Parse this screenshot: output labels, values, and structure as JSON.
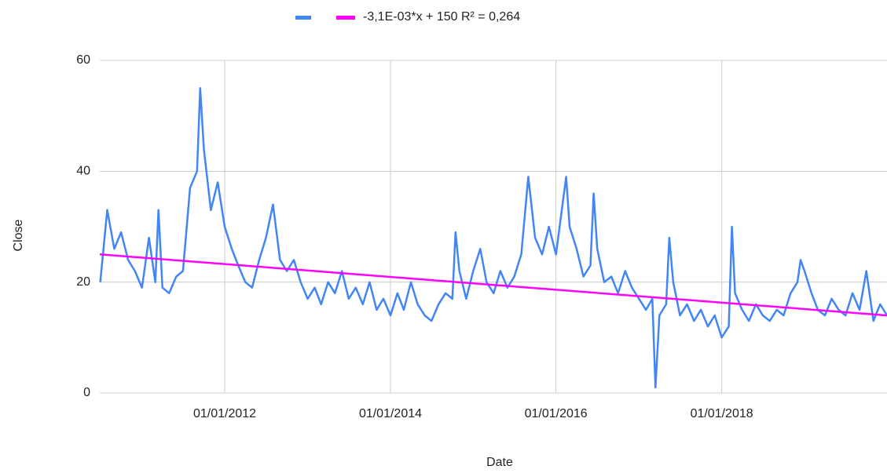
{
  "chart_data": {
    "type": "line",
    "x_label": "Date",
    "y_label": "Close",
    "x": [
      "01/07/2010",
      "01/08/2010",
      "01/09/2010",
      "01/10/2010",
      "01/11/2010",
      "01/12/2010",
      "01/01/2011",
      "01/02/2011",
      "01/03/2011",
      "15/03/2011",
      "01/04/2011",
      "01/05/2011",
      "01/06/2011",
      "01/07/2011",
      "01/08/2011",
      "01/09/2011",
      "15/09/2011",
      "01/10/2011",
      "01/11/2011",
      "01/12/2011",
      "01/01/2012",
      "01/02/2012",
      "01/03/2012",
      "01/04/2012",
      "01/05/2012",
      "01/06/2012",
      "01/07/2012",
      "01/08/2012",
      "01/09/2012",
      "01/10/2012",
      "01/11/2012",
      "01/12/2012",
      "01/01/2013",
      "01/02/2013",
      "01/03/2013",
      "01/04/2013",
      "01/05/2013",
      "01/06/2013",
      "01/07/2013",
      "01/08/2013",
      "01/09/2013",
      "01/10/2013",
      "01/11/2013",
      "01/12/2013",
      "01/01/2014",
      "01/02/2014",
      "01/03/2014",
      "01/04/2014",
      "01/05/2014",
      "01/06/2014",
      "01/07/2014",
      "01/08/2014",
      "01/09/2014",
      "01/10/2014",
      "15/10/2014",
      "01/11/2014",
      "01/12/2014",
      "01/01/2015",
      "01/02/2015",
      "01/03/2015",
      "01/04/2015",
      "01/05/2015",
      "01/06/2015",
      "01/07/2015",
      "01/08/2015",
      "01/09/2015",
      "01/10/2015",
      "01/11/2015",
      "01/12/2015",
      "01/01/2016",
      "15/02/2016",
      "01/03/2016",
      "01/04/2016",
      "01/05/2016",
      "01/06/2016",
      "15/06/2016",
      "01/07/2016",
      "01/08/2016",
      "01/09/2016",
      "01/10/2016",
      "01/11/2016",
      "01/12/2016",
      "01/01/2017",
      "01/02/2017",
      "01/03/2017",
      "15/03/2017",
      "01/04/2017",
      "01/05/2017",
      "15/05/2017",
      "01/06/2017",
      "01/07/2017",
      "01/08/2017",
      "01/09/2017",
      "01/10/2017",
      "01/11/2017",
      "01/12/2017",
      "01/01/2018",
      "01/02/2018",
      "15/02/2018",
      "01/03/2018",
      "01/04/2018",
      "01/05/2018",
      "01/06/2018",
      "01/07/2018",
      "01/08/2018",
      "01/09/2018",
      "01/10/2018",
      "01/11/2018",
      "01/12/2018",
      "15/12/2018",
      "01/01/2019",
      "01/02/2019",
      "01/03/2019",
      "01/04/2019",
      "01/05/2019",
      "01/06/2019",
      "01/07/2019",
      "01/08/2019",
      "01/09/2019",
      "01/10/2019",
      "01/11/2019",
      "01/12/2019",
      "31/12/2019"
    ],
    "series": [
      {
        "color": "#4285f4",
        "values": [
          20,
          33,
          26,
          29,
          24,
          22,
          19,
          28,
          20,
          33,
          19,
          18,
          21,
          22,
          37,
          40,
          55,
          44,
          33,
          38,
          30,
          26,
          23,
          20,
          19,
          24,
          28,
          34,
          24,
          22,
          24,
          20,
          17,
          19,
          16,
          20,
          18,
          22,
          17,
          19,
          16,
          20,
          15,
          17,
          14,
          18,
          15,
          20,
          16,
          14,
          13,
          16,
          18,
          17,
          29,
          22,
          17,
          22,
          26,
          20,
          18,
          22,
          19,
          21,
          25,
          39,
          28,
          25,
          30,
          25,
          39,
          30,
          26,
          21,
          23,
          36,
          26,
          20,
          21,
          18,
          22,
          19,
          17,
          15,
          17,
          1,
          14,
          16,
          28,
          20,
          14,
          16,
          13,
          15,
          12,
          14,
          10,
          12,
          30,
          18,
          15,
          13,
          16,
          14,
          13,
          15,
          14,
          18,
          20,
          24,
          22,
          18,
          15,
          14,
          17,
          15,
          14,
          18,
          15,
          22,
          13,
          16,
          14
        ]
      }
    ],
    "trendline": {
      "name": "-3,1E-03*x + 150 R² = 0,264",
      "color": "#ff00ff",
      "x": [
        "29/06/2010",
        "31/12/2019"
      ],
      "values": [
        25,
        14
      ]
    },
    "xlim": [
      "29/06/2010",
      "31/12/2019"
    ],
    "xticks": [
      "01/01/2012",
      "01/01/2014",
      "01/01/2016",
      "01/01/2018"
    ],
    "ylim": [
      0,
      60
    ],
    "yticks": [
      0,
      20,
      40,
      60
    ],
    "grid": true
  }
}
